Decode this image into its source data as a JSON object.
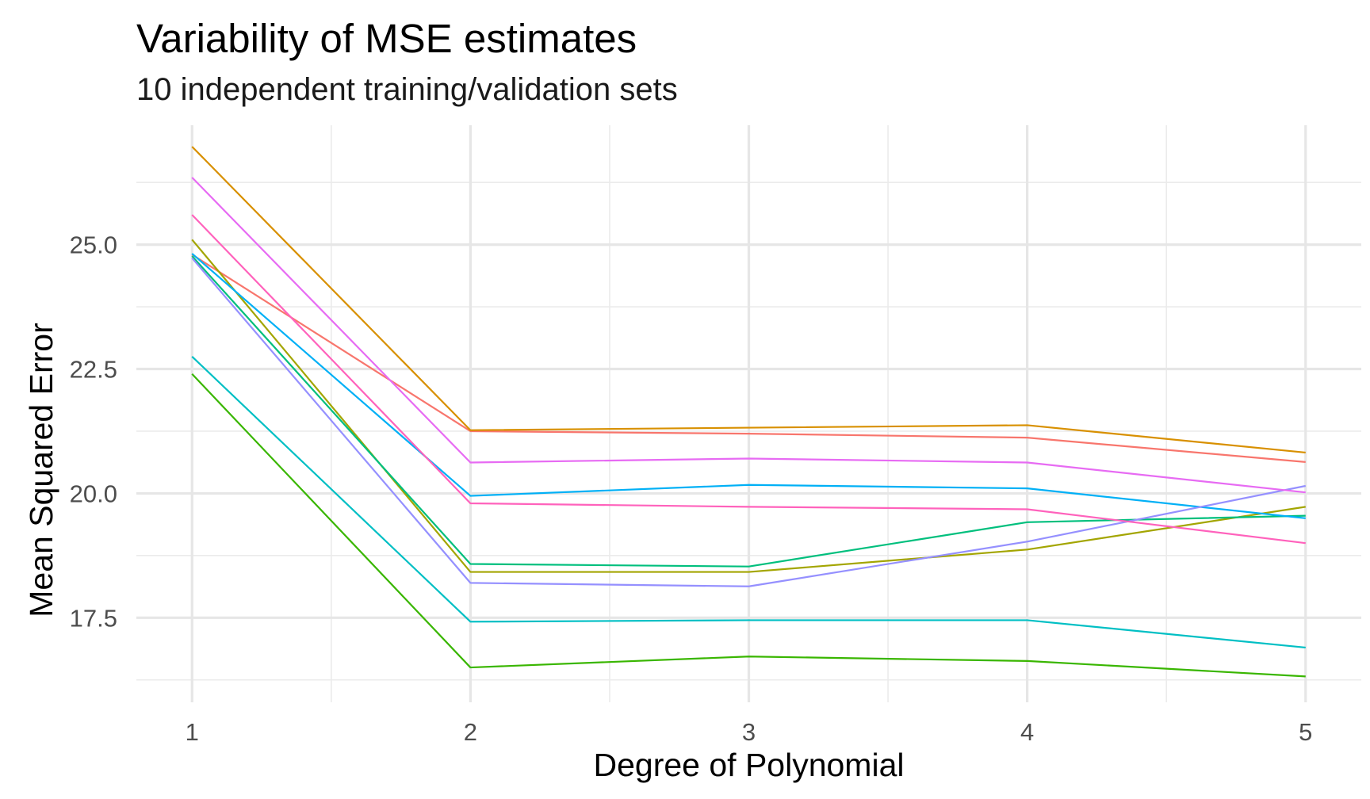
{
  "chart_data": {
    "type": "line",
    "title": "Variability of MSE estimates",
    "subtitle": "10 independent training/validation sets",
    "xlabel": "Degree of Polynomial",
    "ylabel": "Mean Squared Error",
    "x": [
      1,
      2,
      3,
      4,
      5
    ],
    "x_ticks": [
      "1",
      "2",
      "3",
      "4",
      "5"
    ],
    "y_ticks": [
      "17.5",
      "20.0",
      "22.5",
      "25.0"
    ],
    "y_tick_values": [
      17.5,
      20.0,
      22.5,
      25.0
    ],
    "xlim": [
      0.8,
      5.2
    ],
    "ylim": [
      15.8,
      27.4
    ],
    "grid": true,
    "legend": "none",
    "series": [
      {
        "color": "#F8766D",
        "values": [
          24.8,
          21.25,
          21.2,
          21.12,
          20.63
        ]
      },
      {
        "color": "#D89000",
        "values": [
          26.97,
          21.27,
          21.32,
          21.37,
          20.82
        ]
      },
      {
        "color": "#A3A500",
        "values": [
          25.1,
          18.42,
          18.42,
          18.87,
          19.73
        ]
      },
      {
        "color": "#39B600",
        "values": [
          22.4,
          16.5,
          16.72,
          16.63,
          16.32
        ]
      },
      {
        "color": "#00BF7D",
        "values": [
          24.77,
          18.58,
          18.53,
          19.42,
          19.55
        ]
      },
      {
        "color": "#00BFC4",
        "values": [
          22.75,
          17.42,
          17.45,
          17.45,
          16.9
        ]
      },
      {
        "color": "#00B0F6",
        "values": [
          24.82,
          19.95,
          20.17,
          20.1,
          19.5
        ]
      },
      {
        "color": "#9590FF",
        "values": [
          24.73,
          18.2,
          18.13,
          19.03,
          20.15
        ]
      },
      {
        "color": "#E76BF3",
        "values": [
          26.35,
          20.62,
          20.7,
          20.62,
          20.02
        ]
      },
      {
        "color": "#FF62BC",
        "values": [
          25.6,
          19.8,
          19.73,
          19.68,
          19.0
        ]
      }
    ]
  }
}
